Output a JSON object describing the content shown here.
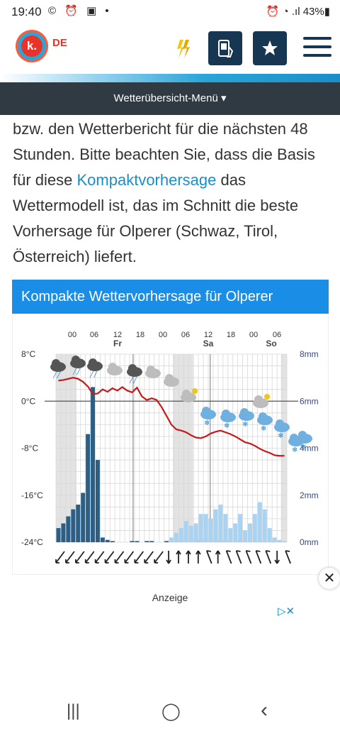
{
  "status": {
    "time": "19:40",
    "left_icons": "© ⏰ ▣ •",
    "right_icons": "⏰ ◔ .ıl 43%▮"
  },
  "header": {
    "logo_letter": "k.",
    "lang": "DE"
  },
  "nav": {
    "menu_label": "Wetterübersicht-Menü ▾"
  },
  "paragraph": {
    "part1": "bzw. den Wetterbericht für die nächsten 48 Stunden. Bitte beachten Sie, dass die Basis für diese ",
    "link": "Kompaktvorhersage",
    "part2": " das Wettermodell ist, das im Schnitt die beste Vorhersage für Olperer (Schwaz, Tirol, Österreich) liefert."
  },
  "card": {
    "title": "Kompakte Wettervorhersage für Olperer"
  },
  "chart_data": {
    "type": "line",
    "hour_labels": [
      "00",
      "06",
      "12",
      "18",
      "00",
      "06",
      "12",
      "18",
      "00",
      "06"
    ],
    "day_labels": [
      "Fr",
      "Sa",
      "So"
    ],
    "temp_ticks": [
      "8°C",
      "0°C",
      "-8°C",
      "-16°C",
      "-24°C"
    ],
    "precip_ticks": [
      "8mm",
      "6mm",
      "4mm",
      "2mm",
      "0mm"
    ],
    "ylim_temp": [
      -24,
      8
    ],
    "ylim_precip": [
      0,
      8
    ],
    "temperature": [
      3.5,
      3.6,
      3.8,
      4,
      3.8,
      3.3,
      2.5,
      1.2,
      1.3,
      2,
      1.6,
      2.2,
      1.8,
      2.4,
      1.8,
      1.5,
      2.3,
      0.8,
      0.2,
      0.5,
      0.2,
      -1,
      -2.5,
      -4,
      -4.8,
      -5,
      -5.3,
      -5.8,
      -6.2,
      -6.3,
      -6,
      -5.5,
      -5.2,
      -5,
      -5.3,
      -5.6,
      -6,
      -6.5,
      -7,
      -7.2,
      -7.6,
      -8.1,
      -8.5,
      -8.8,
      -9.2,
      -9.3,
      -9.3
    ],
    "precipitation": [
      0.6,
      0.8,
      1.1,
      1.4,
      1.6,
      2.1,
      4.6,
      6.6,
      3.5,
      0.2,
      0.1,
      0.05,
      0,
      0,
      0,
      0.05,
      0.05,
      0,
      0.05,
      0.05,
      0,
      0,
      0.05,
      0.05,
      0.05,
      0.05,
      0,
      0,
      0.15,
      0.1,
      0.15,
      0.2,
      0.1,
      0.05,
      0.1,
      0,
      0,
      0.1,
      0,
      0,
      0,
      0.05,
      0,
      0,
      0.05,
      0,
      0
    ],
    "precipitation_snow": [
      0,
      0,
      0,
      0,
      0,
      0,
      0,
      0,
      0,
      0,
      0,
      0,
      0,
      0,
      0,
      0,
      0,
      0,
      0,
      0,
      0,
      0,
      0,
      0.2,
      0.4,
      0.6,
      0.9,
      0.7,
      0.8,
      1.2,
      1.2,
      1,
      1.4,
      1.6,
      1.2,
      0.6,
      0.8,
      1.2,
      0.5,
      0.8,
      1.2,
      1.7,
      1.4,
      0.6,
      0.2,
      0.1,
      0.05
    ],
    "wind_arrows": [
      "sw",
      "sw",
      "sw",
      "sw",
      "sw",
      "sw",
      "sw",
      "sw",
      "sw",
      "sw",
      "sw",
      "s",
      "n",
      "n",
      "n",
      "nw",
      "n",
      "nw",
      "nw",
      "nw",
      "nw",
      "nw",
      "s",
      "nw"
    ],
    "weather_icons": [
      "cloud-rain",
      "cloud-rain",
      "cloud-rain",
      "cloud",
      "cloud-rain",
      "cloud",
      "cloud",
      "cloud-moon",
      "cloud-snow",
      "cloud-snow",
      "cloud-snow",
      "cloud-snow",
      "cloud-moon",
      "cloud-snow",
      "cloud-snow",
      "cloud-snow"
    ],
    "colors": {
      "temp": "#c41a1a",
      "rain": "#2b5f86",
      "snow": "#a9d3f0",
      "night": "#e3e3e3"
    }
  },
  "ad": {
    "label": "Anzeige",
    "close": "✕",
    "adchoice": "▷✕"
  },
  "bottomnav": {
    "recent": "|||",
    "home": "◯",
    "back": "‹"
  }
}
